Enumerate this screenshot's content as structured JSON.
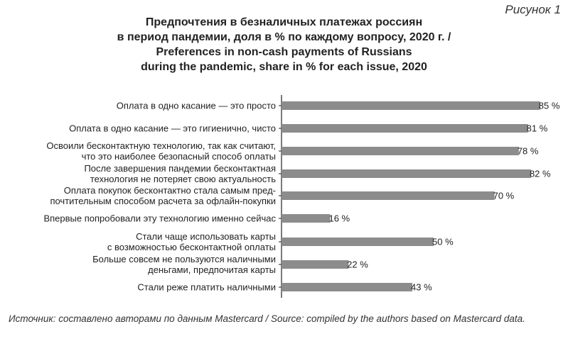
{
  "figure_label": "Рисунок 1",
  "source": "Источник: составлено авторами по данным Mastercard / Source: compiled by the authors based on Mastercard data.",
  "colors": {
    "bar": "#8c8c8c",
    "axis": "#222222",
    "text": "#222222"
  },
  "chart_data": {
    "type": "bar",
    "orientation": "horizontal",
    "title": [
      "Предпочтения в безналичных платежах россиян",
      "в период пандемии, доля в % по каждому вопросу, 2020 г. /",
      "Preferences in non-cash payments of Russians",
      "during the pandemic, share in % for each issue, 2020"
    ],
    "categories": [
      [
        "Оплата в одно касание — это просто"
      ],
      [
        "Оплата в одно касание — это гигиенично, чисто"
      ],
      [
        "Освоили бесконтактную технологию, так как считают,",
        "что это наиболее безопасный способ оплаты"
      ],
      [
        "После завершения пандемии бесконтактная",
        "технология не потеряет свою актуальность"
      ],
      [
        "Оплата покупок бесконтактно стала самым пред-",
        "почтительным способом расчета за офлайн-покупки"
      ],
      [
        "Впервые попробовали эту технологию именно сейчас"
      ],
      [
        "Стали чаще использовать карты",
        "с возможностью бесконтактной оплаты"
      ],
      [
        "Больше совсем не пользуются наличными",
        "деньгами, предпочитая карты"
      ],
      [
        "Стали реже платить наличными"
      ]
    ],
    "values": [
      85,
      81,
      78,
      82,
      70,
      16,
      50,
      22,
      43
    ],
    "value_labels": [
      "85 %",
      "81 %",
      "78 %",
      "82 %",
      "70 %",
      "16 %",
      "50 %",
      "22 %",
      "43 %"
    ],
    "xlim": [
      0,
      100
    ],
    "grid": false,
    "legend": "none"
  }
}
